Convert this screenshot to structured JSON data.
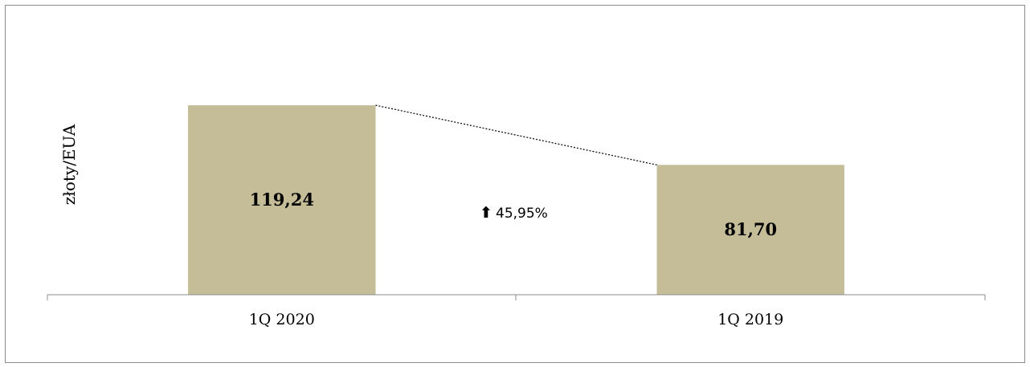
{
  "chart_data": {
    "type": "bar",
    "categories": [
      "1Q 2020",
      "1Q 2019"
    ],
    "values": [
      119.24,
      81.7
    ],
    "value_labels": [
      "119,24",
      "81,70"
    ],
    "ylabel": "złoty/EUA",
    "title": "",
    "ylim": [
      0,
      140
    ],
    "grid": false,
    "bar_color": "#c5bc98",
    "change_label": "45,95%",
    "change_direction": "up",
    "connector": "dotted"
  }
}
